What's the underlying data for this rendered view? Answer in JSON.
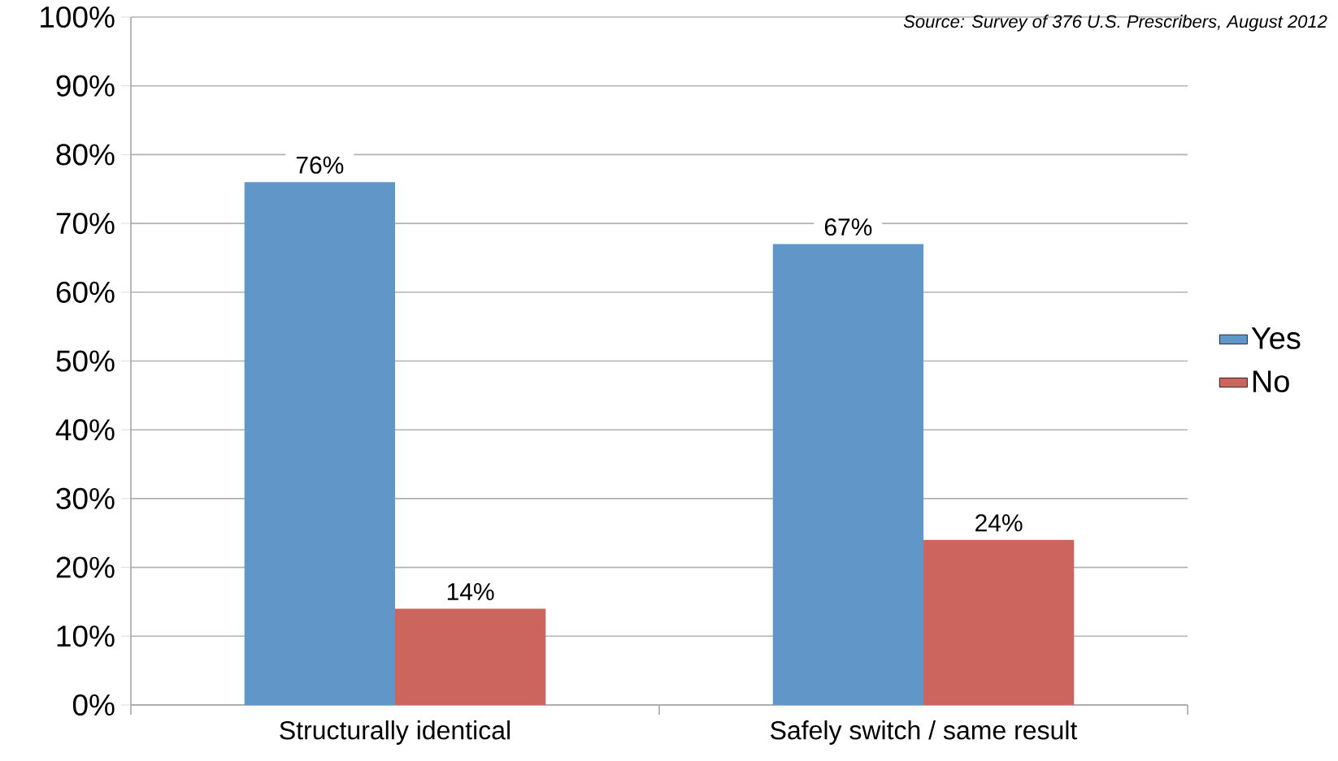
{
  "chart_data": {
    "type": "bar",
    "categories": [
      "Structurally identical",
      "Safely switch / same result"
    ],
    "series": [
      {
        "name": "Yes",
        "color": "#6096c8",
        "values": [
          76,
          67
        ],
        "value_labels": [
          "76%",
          "67%"
        ]
      },
      {
        "name": "No",
        "color": "#cc655e",
        "values": [
          14,
          24
        ],
        "value_labels": [
          "14%",
          "24%"
        ]
      }
    ],
    "ylim": [
      0,
      100
    ],
    "yticks": [
      {
        "value": 0,
        "label": "0%"
      },
      {
        "value": 10,
        "label": "10%"
      },
      {
        "value": 20,
        "label": "20%"
      },
      {
        "value": 30,
        "label": "30%"
      },
      {
        "value": 40,
        "label": "40%"
      },
      {
        "value": 50,
        "label": "50%"
      },
      {
        "value": 60,
        "label": "60%"
      },
      {
        "value": 70,
        "label": "70%"
      },
      {
        "value": 80,
        "label": "80%"
      },
      {
        "value": 90,
        "label": "90%"
      },
      {
        "value": 100,
        "label": "100%"
      }
    ],
    "grid": "y",
    "legend": "right",
    "annotations": [
      "Source: Survey of 376 U.S. Prescribers, August 2012"
    ]
  }
}
